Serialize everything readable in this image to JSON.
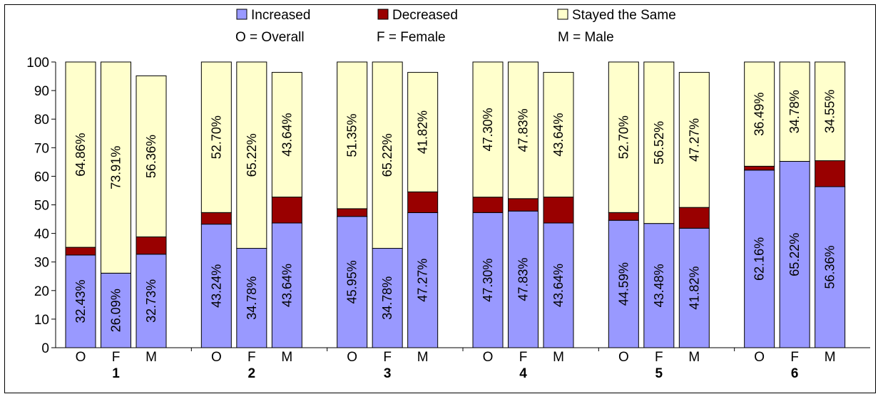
{
  "chart_data": {
    "type": "bar",
    "stacked": true,
    "groups": [
      "1",
      "2",
      "3",
      "4",
      "5",
      "6"
    ],
    "subcategories": [
      "O",
      "F",
      "M"
    ],
    "legend_notes": [
      "O = Overall",
      "F = Female",
      "M = Male"
    ],
    "ylim": [
      0,
      100
    ],
    "yticks": [
      0,
      10,
      20,
      30,
      40,
      50,
      60,
      70,
      80,
      90,
      100
    ],
    "legend_position": "top",
    "grid": false,
    "series": [
      {
        "name": "Increased",
        "color": "#9999FF",
        "values": [
          [
            32.43,
            26.09,
            32.73
          ],
          [
            43.24,
            34.78,
            43.64
          ],
          [
            45.95,
            34.78,
            47.27
          ],
          [
            47.3,
            47.83,
            43.64
          ],
          [
            44.59,
            43.48,
            41.82
          ],
          [
            62.16,
            65.22,
            56.36
          ]
        ],
        "labels": [
          [
            "32.43%",
            "26.09%",
            "32.73%"
          ],
          [
            "43.24%",
            "34.78%",
            "43.64%"
          ],
          [
            "45.95%",
            "34.78%",
            "47.27%"
          ],
          [
            "47.30%",
            "47.83%",
            "43.64%"
          ],
          [
            "44.59%",
            "43.48%",
            "41.82%"
          ],
          [
            "62.16%",
            "65.22%",
            "56.36%"
          ]
        ]
      },
      {
        "name": "Decreased",
        "color": "#990000",
        "values": [
          [
            2.71,
            0,
            6.06
          ],
          [
            4.06,
            0,
            9.09
          ],
          [
            2.7,
            0,
            7.27
          ],
          [
            5.4,
            4.34,
            9.09
          ],
          [
            2.71,
            0,
            7.27
          ],
          [
            1.35,
            0,
            9.09
          ]
        ],
        "labels": [
          [
            "",
            "",
            ""
          ],
          [
            "",
            "",
            ""
          ],
          [
            "",
            "",
            ""
          ],
          [
            "",
            "",
            ""
          ],
          [
            "",
            "",
            ""
          ],
          [
            "",
            "",
            ""
          ]
        ]
      },
      {
        "name": "Stayed the Same",
        "color": "#FFFFCC",
        "values": [
          [
            64.86,
            73.91,
            56.36
          ],
          [
            52.7,
            65.22,
            43.64
          ],
          [
            51.35,
            65.22,
            41.82
          ],
          [
            47.3,
            47.83,
            43.64
          ],
          [
            52.7,
            56.52,
            47.27
          ],
          [
            36.49,
            34.78,
            34.55
          ]
        ],
        "labels": [
          [
            "64.86%",
            "73.91%",
            "56.36%"
          ],
          [
            "52.70%",
            "65.22%",
            "43.64%"
          ],
          [
            "51.35%",
            "65.22%",
            "41.82%"
          ],
          [
            "47.30%",
            "47.83%",
            "43.64%"
          ],
          [
            "52.70%",
            "56.52%",
            "47.27%"
          ],
          [
            "36.49%",
            "34.78%",
            "34.55%"
          ]
        ]
      }
    ]
  }
}
